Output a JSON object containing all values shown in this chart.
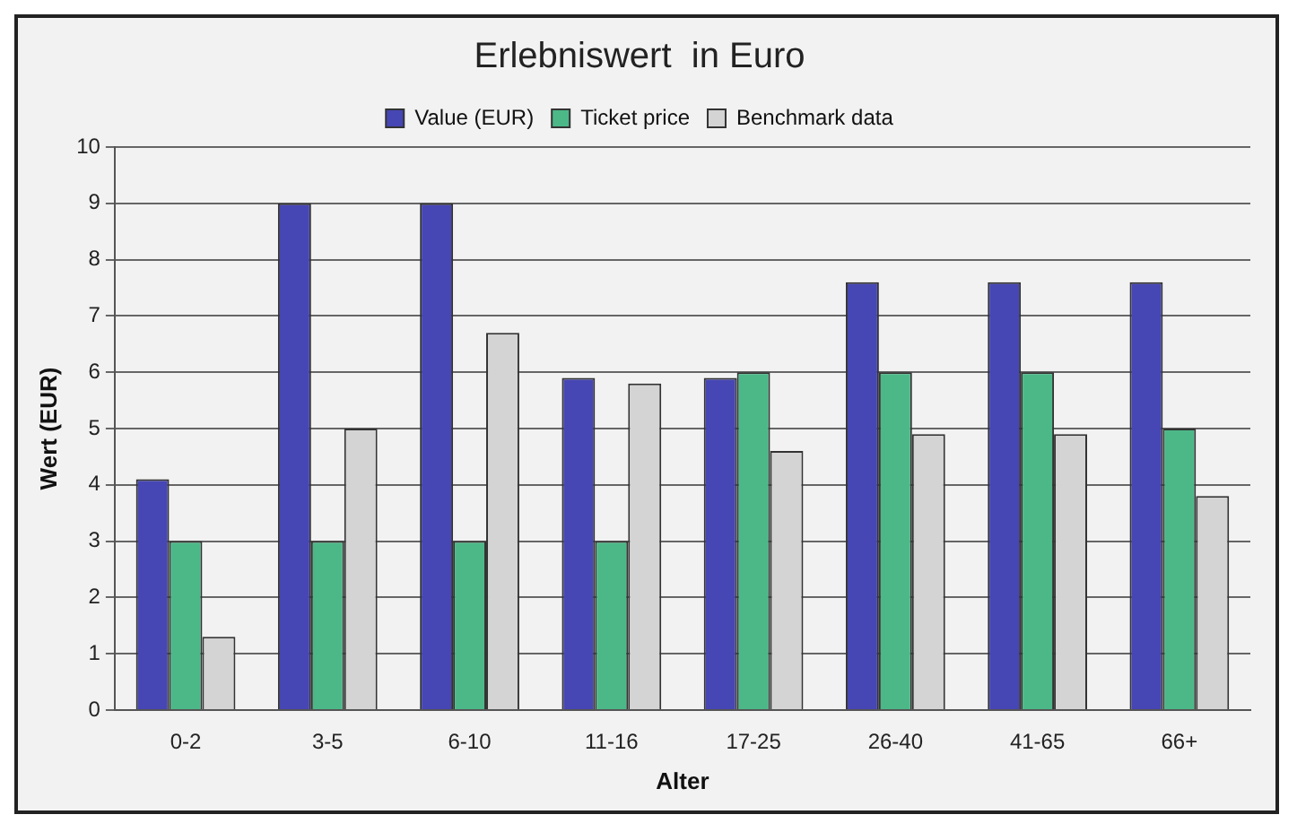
{
  "chart_data": {
    "type": "bar",
    "title": "Erlebniswert  in Euro",
    "xlabel": "Alter",
    "ylabel": "Wert (EUR)",
    "categories": [
      "0-2",
      "3-5",
      "6-10",
      "11-16",
      "17-25",
      "26-40",
      "41-65",
      "66+"
    ],
    "series": [
      {
        "name": "Value (EUR)",
        "color": "#4646b4",
        "values": [
          4.1,
          9,
          9,
          5.9,
          5.9,
          7.6,
          7.6,
          7.6
        ]
      },
      {
        "name": "Ticket price",
        "color": "#4cb888",
        "values": [
          3,
          3,
          3,
          3,
          6,
          6,
          6,
          5
        ]
      },
      {
        "name": "Benchmark data",
        "color": "#d4d4d4",
        "values": [
          1.3,
          5,
          6.7,
          5.8,
          4.6,
          4.9,
          4.9,
          3.8
        ]
      }
    ],
    "ylim": [
      0,
      10
    ],
    "yticks": [
      0,
      1,
      2,
      3,
      4,
      5,
      6,
      7,
      8,
      9,
      10
    ],
    "grid": "y",
    "legend": "top"
  }
}
